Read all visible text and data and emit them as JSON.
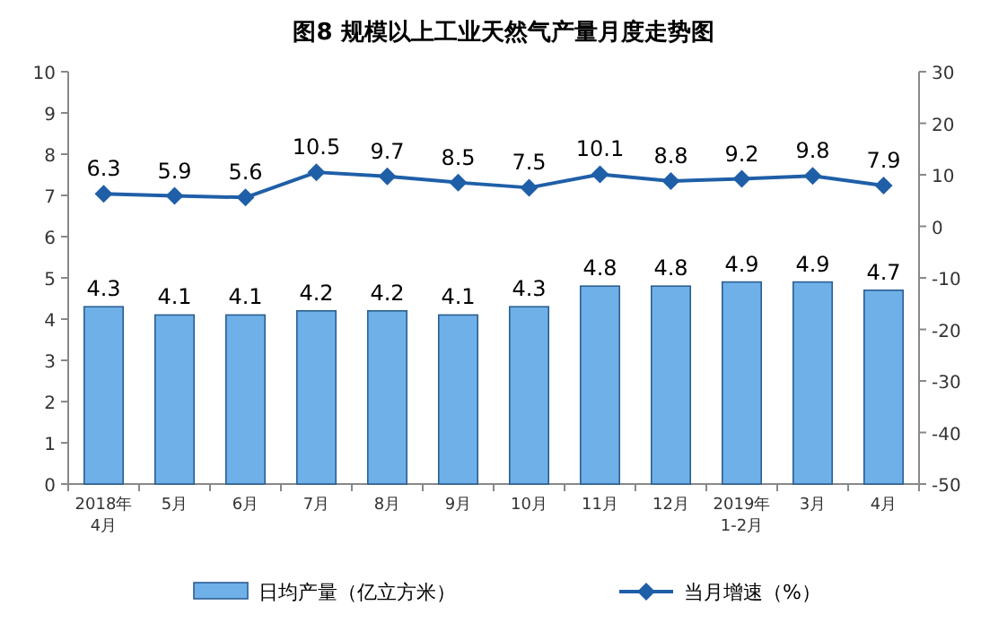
{
  "chart_data": {
    "type": "bar",
    "title": "图8  规模以上工业天然气产量月度走势图",
    "categories": [
      "2018年4月",
      "5月",
      "6月",
      "7月",
      "8月",
      "9月",
      "10月",
      "11月",
      "12月",
      "2019年1-2月",
      "3月",
      "4月"
    ],
    "series": [
      {
        "name": "日均产量（亿立方米）",
        "color": "#6fb0e8",
        "values": [
          4.3,
          4.1,
          4.1,
          4.2,
          4.2,
          4.1,
          4.3,
          4.8,
          4.8,
          4.9,
          4.9,
          4.7
        ]
      },
      {
        "name": "当月增速（%）",
        "type": "line",
        "axis": "y2",
        "color": "#1f5fa8",
        "values": [
          6.3,
          5.9,
          5.6,
          10.5,
          9.7,
          8.5,
          7.5,
          10.1,
          8.8,
          9.2,
          9.8,
          7.9
        ]
      }
    ],
    "ylim": [
      0,
      10
    ],
    "yticks": [
      0,
      1,
      2,
      3,
      4,
      5,
      6,
      7,
      8,
      9,
      10
    ],
    "y2lim": [
      -50,
      30
    ],
    "y2ticks": [
      -50,
      -40,
      -30,
      -20,
      -10,
      0,
      10,
      20,
      30
    ],
    "data_labels": true,
    "legend": "bottom",
    "marker": "diamond"
  }
}
